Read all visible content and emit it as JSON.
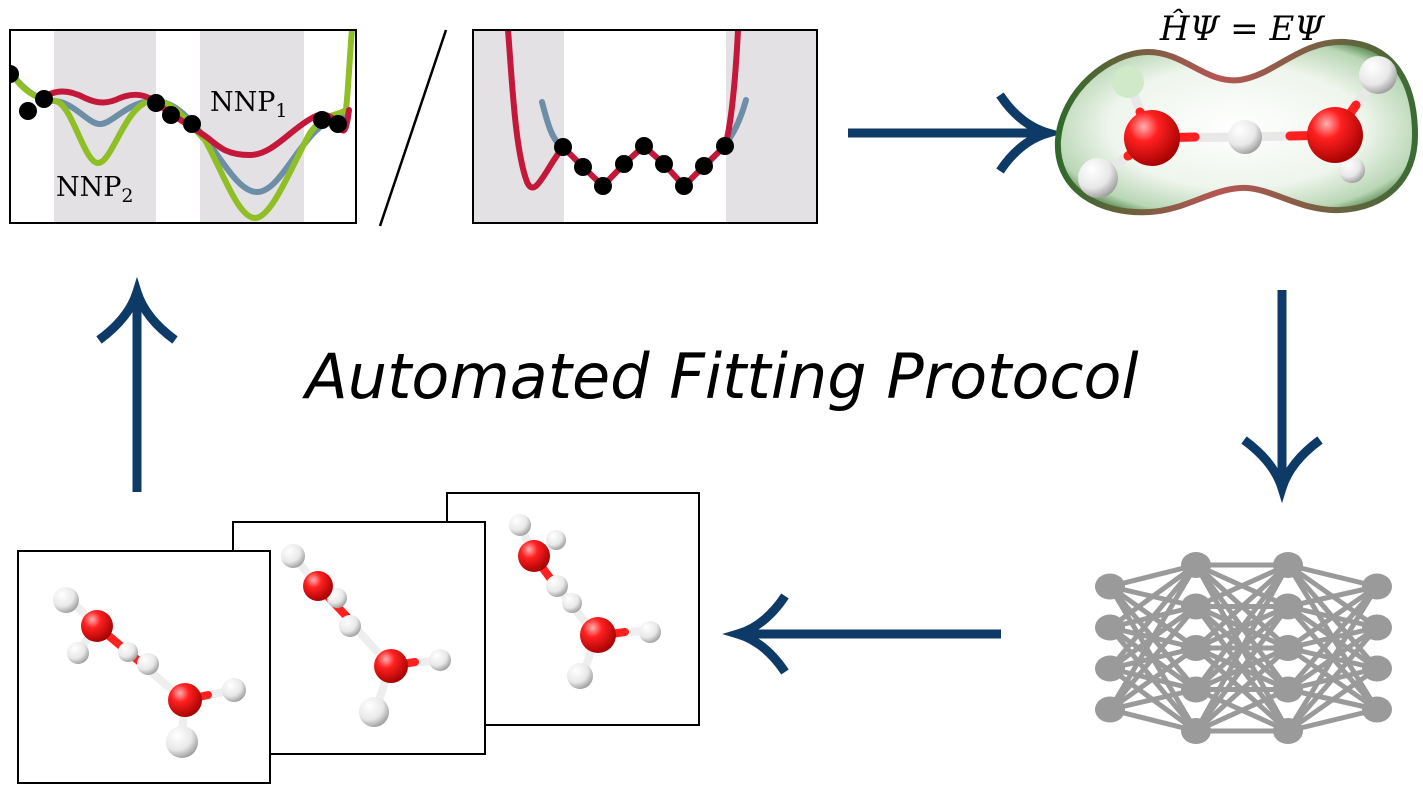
{
  "title": "Automated Fitting Protocol",
  "equation": "ĤΨ = EΨ",
  "labels": {
    "nnp1_main": "NNP",
    "nnp1_sub": "1",
    "nnp2_main": "NNP",
    "nnp2_sub": "2"
  },
  "colors": {
    "nnp1_curve": "#c3183a",
    "nnp2_curve": "#8fbf25",
    "reference_curve": "#6d8ea6",
    "sample_points": "#000000",
    "shaded_region": "#e3e1e3",
    "flow_arrows": "#0d3a66",
    "oxygen": "#ee1111",
    "hydrogen": "#f0f0f0",
    "network_nodes": "#9a9a9a"
  },
  "neural_network": {
    "layer_sizes": [
      4,
      5,
      5,
      4
    ]
  }
}
